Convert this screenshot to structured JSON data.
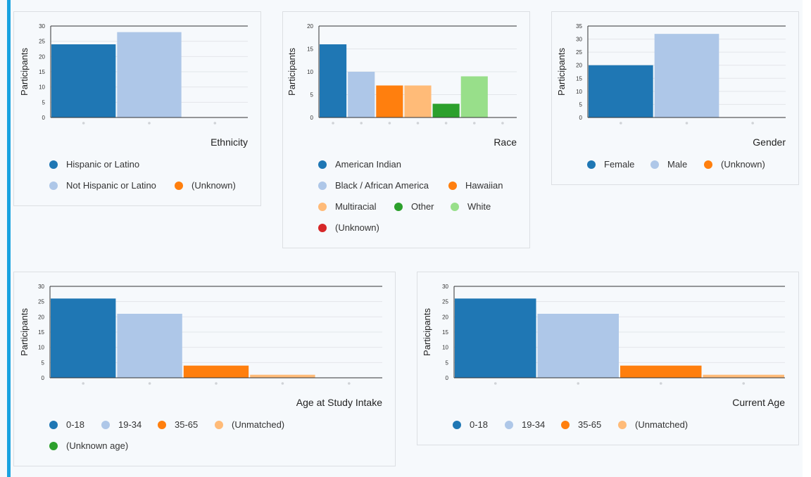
{
  "colors": {
    "accent": "#1aa3e0",
    "grid": "#e3e6ea",
    "axis": "#333333",
    "palette": [
      "#1f77b4",
      "#aec7e8",
      "#ff7f0e",
      "#ffbb78",
      "#2ca02c",
      "#98df8a",
      "#d62728"
    ]
  },
  "chart_data": [
    {
      "type": "bar",
      "title": "Ethnicity",
      "xlabel": "Ethnicity",
      "ylabel": "Participants",
      "categories": [
        "Hispanic or Latino",
        "Not Hispanic or Latino",
        "(Unknown)"
      ],
      "values": [
        24,
        28,
        0
      ],
      "yticks": [
        0,
        5,
        10,
        15,
        20,
        25,
        30
      ],
      "ylim": [
        0,
        30
      ],
      "legend": [
        "Hispanic or Latino",
        "Not Hispanic or Latino",
        "(Unknown)"
      ]
    },
    {
      "type": "bar",
      "title": "Race",
      "xlabel": "Race",
      "ylabel": "Participants",
      "categories": [
        "American Indian",
        "Black / African America",
        "Hawaiian",
        "Multiracial",
        "Other",
        "White",
        "(Unknown)"
      ],
      "values": [
        16,
        10,
        7,
        7,
        3,
        9,
        0
      ],
      "yticks": [
        0,
        5,
        10,
        15,
        20
      ],
      "ylim": [
        0,
        20
      ],
      "legend": [
        "American Indian",
        "Black / African America",
        "Hawaiian",
        "Multiracial",
        "Other",
        "White",
        "(Unknown)"
      ]
    },
    {
      "type": "bar",
      "title": "Gender",
      "xlabel": "Gender",
      "ylabel": "Participants",
      "categories": [
        "Female",
        "Male",
        "(Unknown)"
      ],
      "values": [
        20,
        32,
        0
      ],
      "yticks": [
        0,
        5,
        10,
        15,
        20,
        25,
        30,
        35
      ],
      "ylim": [
        0,
        35
      ],
      "legend": [
        "Female",
        "Male",
        "(Unknown)"
      ]
    },
    {
      "type": "bar",
      "title": "Age at Study Intake",
      "xlabel": "Age at Study Intake",
      "ylabel": "Participants",
      "categories": [
        "0-18",
        "19-34",
        "35-65",
        "(Unmatched)",
        "(Unknown age)"
      ],
      "values": [
        26,
        21,
        4,
        1,
        0
      ],
      "yticks": [
        0,
        5,
        10,
        15,
        20,
        25,
        30
      ],
      "ylim": [
        0,
        30
      ],
      "legend": [
        "0-18",
        "19-34",
        "35-65",
        "(Unmatched)",
        "(Unknown age)"
      ]
    },
    {
      "type": "bar",
      "title": "Current Age",
      "xlabel": "Current Age",
      "ylabel": "Participants",
      "categories": [
        "0-18",
        "19-34",
        "35-65",
        "(Unmatched)"
      ],
      "values": [
        26,
        21,
        4,
        1
      ],
      "yticks": [
        0,
        5,
        10,
        15,
        20,
        25,
        30
      ],
      "ylim": [
        0,
        30
      ],
      "legend": [
        "0-18",
        "19-34",
        "35-65",
        "(Unmatched)"
      ]
    }
  ]
}
